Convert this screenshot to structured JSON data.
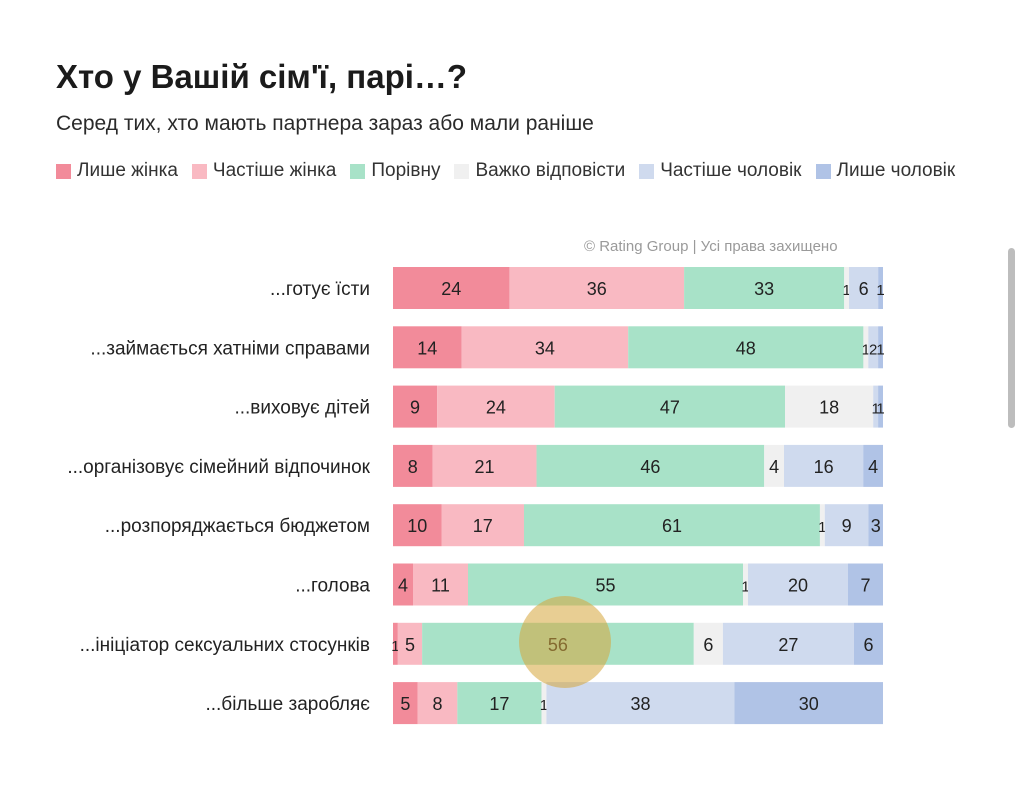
{
  "title": "Хто у Вашій сім'ї, парі…?",
  "subtitle": "Серед тих, хто мають партнера зараз або мали раніше",
  "copyright": "© Rating Group | Усі права захищено",
  "legend": [
    {
      "label": "Лише жінка",
      "color": "#f28b9a"
    },
    {
      "label": "Частіше  жінка",
      "color": "#f9b9c2"
    },
    {
      "label": "Порівну",
      "color": "#a8e2c8"
    },
    {
      "label": "Важко відповісти",
      "color": "#f0f0f0"
    },
    {
      "label": "Частіше  чоловік",
      "color": "#cfdaee"
    },
    {
      "label": "Лише чоловік",
      "color": "#b0c3e6"
    }
  ],
  "chart_data": {
    "type": "bar",
    "orientation": "horizontal",
    "stacked": true,
    "categories": [
      "...готує їсти",
      "...займається хатніми справами",
      "...виховує дітей",
      "...організовує сімейний відпочинок",
      "...розпоряджається бюджетом",
      "...голова",
      "...ініціатор сексуальних стосунків",
      "...більше заробляє"
    ],
    "series": [
      {
        "name": "Лише жінка",
        "values": [
          24,
          14,
          9,
          8,
          10,
          4,
          1,
          5
        ]
      },
      {
        "name": "Частіше  жінка",
        "values": [
          36,
          34,
          24,
          21,
          17,
          11,
          5,
          8
        ]
      },
      {
        "name": "Порівну",
        "values": [
          33,
          48,
          47,
          46,
          61,
          55,
          56,
          17
        ]
      },
      {
        "name": "Важко відповісти",
        "values": [
          1,
          1,
          18,
          4,
          1,
          1,
          6,
          1
        ]
      },
      {
        "name": "Частіше  чоловік",
        "values": [
          6,
          2,
          1,
          16,
          9,
          20,
          27,
          38
        ]
      },
      {
        "name": "Лише чоловік",
        "values": [
          1,
          1,
          1,
          4,
          3,
          7,
          6,
          30
        ]
      }
    ],
    "xlim": [
      0,
      100
    ],
    "grid": false,
    "legend_position": "top"
  }
}
